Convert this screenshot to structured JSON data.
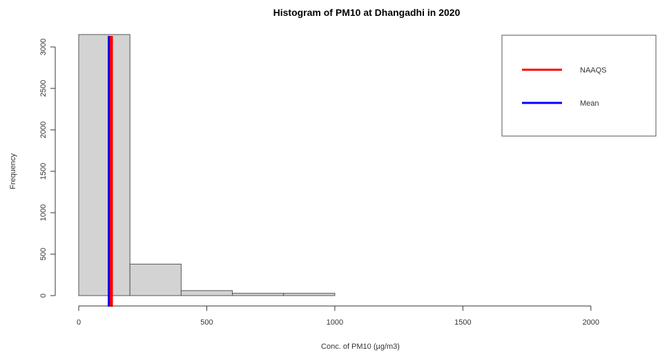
{
  "chart_data": {
    "type": "bar",
    "title": "Histogram of PM10 at Dhangadhi in 2020",
    "xlabel": "Conc. of PM10 (µg/m3)",
    "ylabel": "Frequency",
    "bins": [
      {
        "start": 0,
        "end": 200,
        "count": 3150
      },
      {
        "start": 200,
        "end": 400,
        "count": 380
      },
      {
        "start": 400,
        "end": 600,
        "count": 60
      },
      {
        "start": 600,
        "end": 800,
        "count": 28
      },
      {
        "start": 800,
        "end": 1000,
        "count": 28
      },
      {
        "start": 1000,
        "end": 1200,
        "count": 0
      },
      {
        "start": 1200,
        "end": 1400,
        "count": 0
      },
      {
        "start": 1400,
        "end": 1600,
        "count": 0
      },
      {
        "start": 1600,
        "end": 1800,
        "count": 0
      },
      {
        "start": 1800,
        "end": 2000,
        "count": 0
      },
      {
        "start": 2000,
        "end": 2200,
        "count": 0
      }
    ],
    "xlim": [
      0,
      2200
    ],
    "ylim": [
      0,
      3300
    ],
    "x_ticks": [
      0,
      500,
      1000,
      1500,
      2000
    ],
    "y_ticks": [
      0,
      500,
      1000,
      1500,
      2000,
      2500,
      3000
    ],
    "reference_lines": [
      {
        "name": "NAAQS",
        "x": 120,
        "color": "#ff0000"
      },
      {
        "name": "Mean",
        "x": 120,
        "color": "#0000ff"
      }
    ],
    "legend": {
      "position": "top-right",
      "entries": [
        {
          "label": "NAAQS",
          "color": "#ff0000"
        },
        {
          "label": "Mean",
          "color": "#0000ff"
        }
      ]
    },
    "bar_fill": "#d3d3d3",
    "bar_stroke": "#555555"
  }
}
